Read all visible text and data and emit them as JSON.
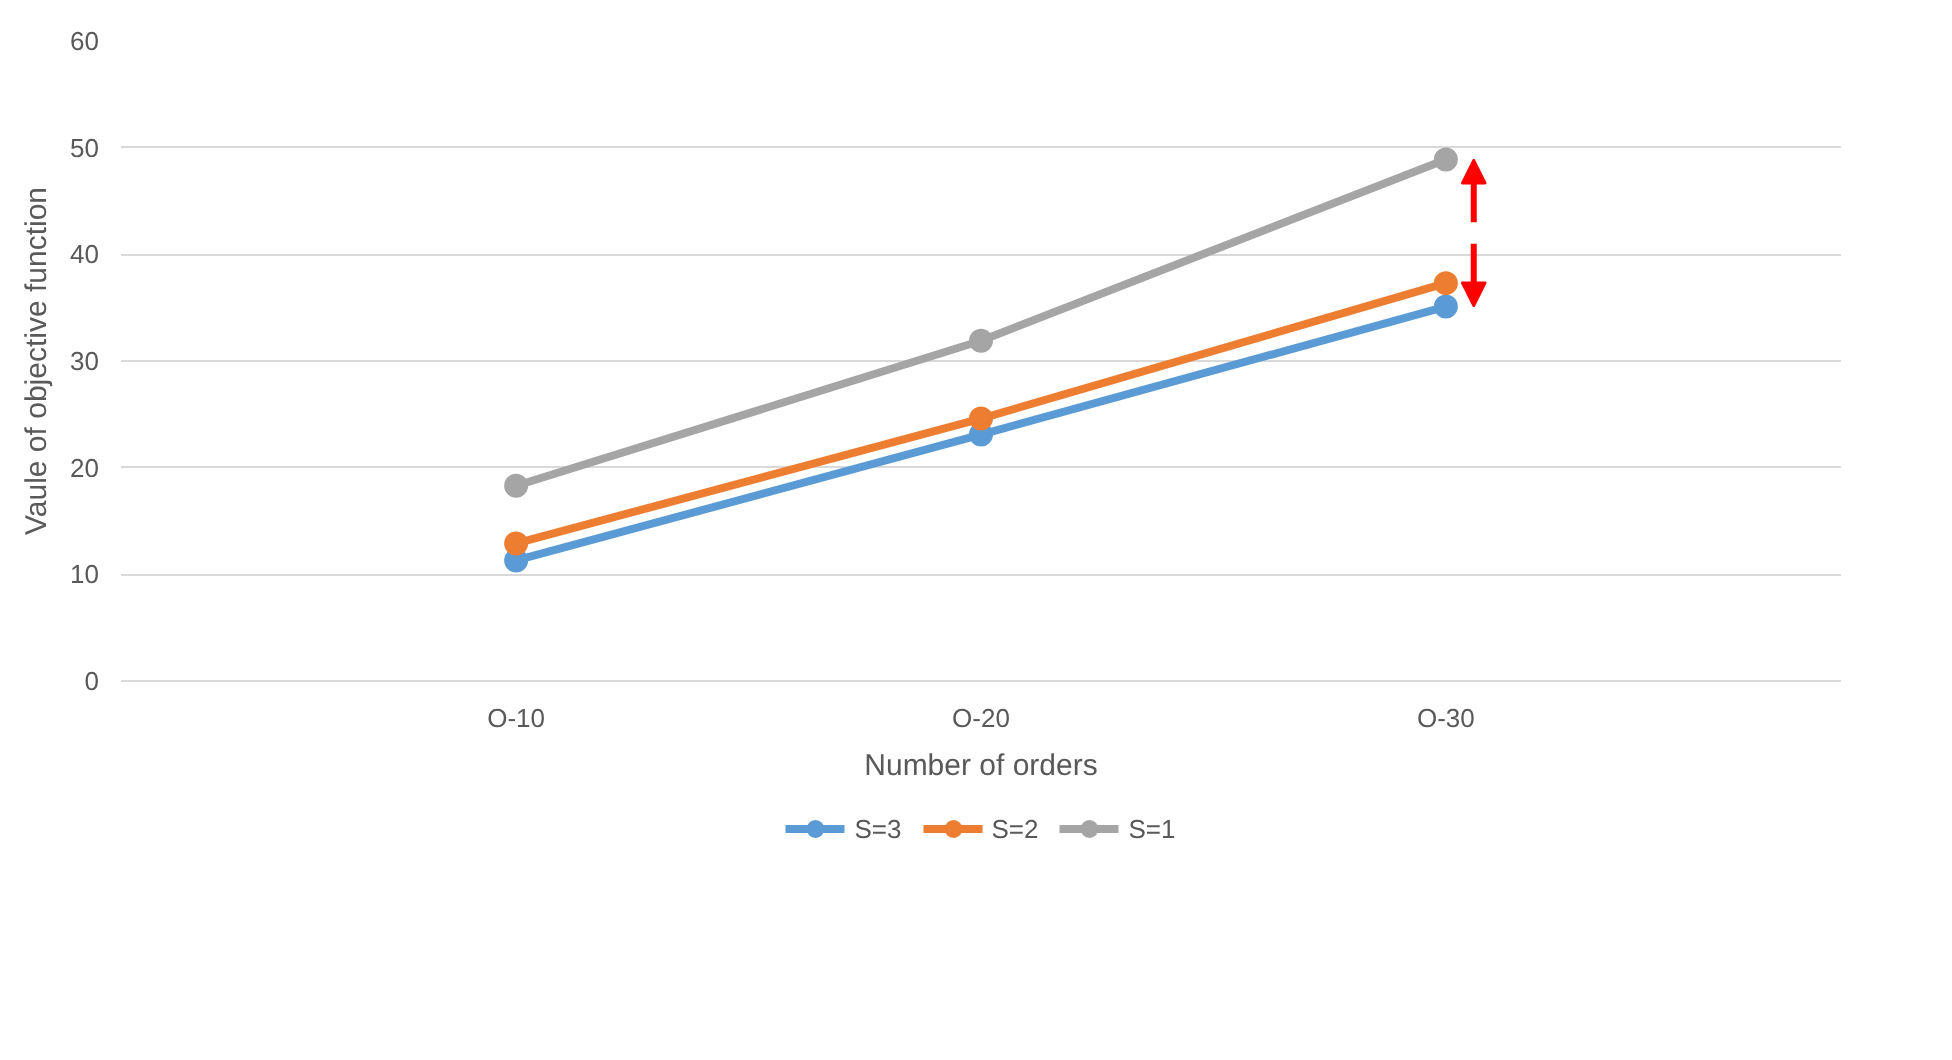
{
  "chart_data": {
    "type": "line",
    "xlabel": "Number of orders",
    "ylabel": "Vaule of objective function",
    "categories": [
      "O-10",
      "O-20",
      "O-30"
    ],
    "series": [
      {
        "name": "S=3",
        "color": "#5b9bd5",
        "values": [
          11.3,
          23.1,
          35.1
        ]
      },
      {
        "name": "S=2",
        "color": "#ed7d31",
        "values": [
          12.9,
          24.6,
          37.3
        ]
      },
      {
        "name": "S=1",
        "color": "#a5a5a5",
        "values": [
          18.3,
          31.9,
          48.9
        ]
      }
    ],
    "ylim": [
      0,
      60
    ],
    "yticks": [
      0,
      10,
      20,
      30,
      40,
      50,
      60
    ],
    "grid": "y",
    "legend": "bottom",
    "marker": "circle",
    "line_style": "solid"
  }
}
